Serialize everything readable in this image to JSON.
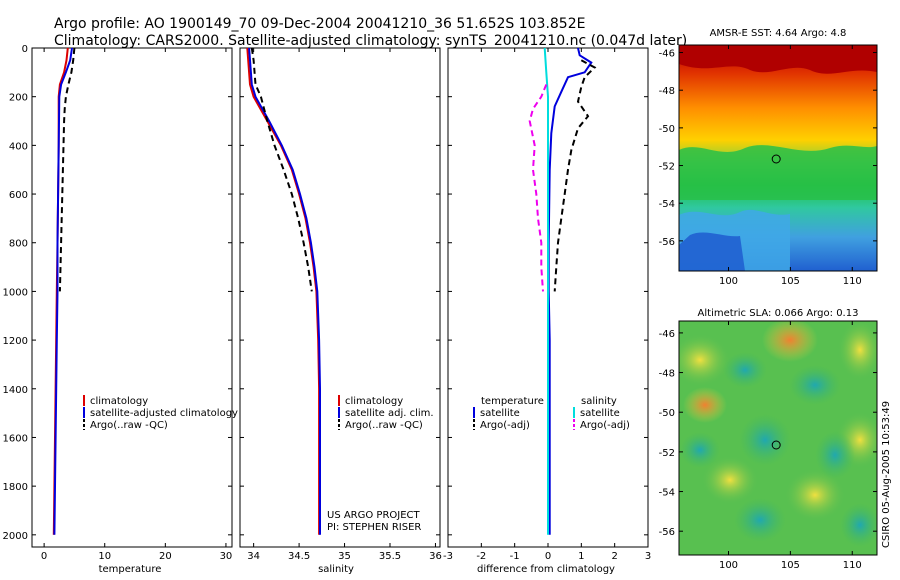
{
  "header": {
    "line1": "Argo profile: AO 1900149_70 09-Dec-2004 20041210_36 51.652S 103.852E",
    "line2": "Climatology: CARS2000. Satellite-adjusted climatology: synTS_20041210.nc (0.047d later)"
  },
  "side_stamp": "CSIRO 05-Aug-2005 10:53:49",
  "chart_data": [
    {
      "id": "temperature",
      "type": "line",
      "xlabel": "temperature",
      "ylabel": "",
      "xlim": [
        -2,
        31
      ],
      "ylim": [
        2050,
        0
      ],
      "xticks": [
        0,
        10,
        20,
        30
      ],
      "yticks": [
        0,
        200,
        400,
        600,
        800,
        1000,
        1200,
        1400,
        1600,
        1800,
        2000
      ],
      "legend": [
        "climatology",
        "satellite-adjusted climatology",
        "Argo(..raw -QC)"
      ],
      "series": [
        {
          "name": "climatology",
          "color": "#dd0000",
          "dash": "",
          "points": [
            [
              3.9,
              0
            ],
            [
              3.7,
              50
            ],
            [
              3.3,
              100
            ],
            [
              2.6,
              150
            ],
            [
              2.4,
              200
            ],
            [
              2.4,
              400
            ],
            [
              2.3,
              600
            ],
            [
              2.2,
              800
            ],
            [
              2.1,
              1000
            ],
            [
              2.0,
              1200
            ],
            [
              1.9,
              1400
            ],
            [
              1.8,
              1600
            ],
            [
              1.7,
              1800
            ],
            [
              1.6,
              2000
            ]
          ]
        },
        {
          "name": "satellite-adjusted climatology",
          "color": "#0000dd",
          "dash": "",
          "points": [
            [
              4.6,
              0
            ],
            [
              4.3,
              50
            ],
            [
              3.6,
              100
            ],
            [
              2.8,
              150
            ],
            [
              2.5,
              200
            ],
            [
              2.4,
              400
            ],
            [
              2.3,
              600
            ],
            [
              2.2,
              800
            ],
            [
              2.2,
              1000
            ],
            [
              2.1,
              1200
            ],
            [
              2.0,
              1400
            ],
            [
              1.9,
              1600
            ],
            [
              1.8,
              1800
            ],
            [
              1.7,
              2000
            ]
          ]
        },
        {
          "name": "Argo(..raw -QC)",
          "color": "#000000",
          "dash": "6,4",
          "points": [
            [
              5.0,
              0
            ],
            [
              4.8,
              50
            ],
            [
              4.5,
              100
            ],
            [
              4.0,
              150
            ],
            [
              3.6,
              200
            ],
            [
              3.4,
              250
            ],
            [
              3.3,
              300
            ],
            [
              3.2,
              400
            ],
            [
              3.1,
              500
            ],
            [
              3.0,
              600
            ],
            [
              2.9,
              700
            ],
            [
              2.8,
              800
            ],
            [
              2.7,
              900
            ],
            [
              2.6,
              1000
            ]
          ]
        }
      ]
    },
    {
      "id": "salinity",
      "type": "line",
      "xlabel": "salinity",
      "ylabel": "",
      "xlim": [
        33.85,
        36.05
      ],
      "ylim": [
        2050,
        0
      ],
      "xticks": [
        34,
        34.5,
        35,
        35.5,
        36
      ],
      "yticks": [
        0,
        200,
        400,
        600,
        800,
        1000,
        1200,
        1400,
        1600,
        1800,
        2000
      ],
      "legend": [
        "climatology",
        "satellite adj. clim.",
        "Argo(..raw -QC)"
      ],
      "annotation": [
        "US ARGO PROJECT",
        "PI: STEPHEN RISER"
      ],
      "series": [
        {
          "name": "climatology",
          "color": "#dd0000",
          "dash": "",
          "points": [
            [
              33.93,
              0
            ],
            [
              33.94,
              50
            ],
            [
              33.96,
              150
            ],
            [
              34.0,
              200
            ],
            [
              34.15,
              300
            ],
            [
              34.3,
              400
            ],
            [
              34.42,
              500
            ],
            [
              34.5,
              600
            ],
            [
              34.57,
              700
            ],
            [
              34.62,
              800
            ],
            [
              34.66,
              900
            ],
            [
              34.69,
              1000
            ],
            [
              34.71,
              1200
            ],
            [
              34.72,
              1400
            ],
            [
              34.72,
              1600
            ],
            [
              34.72,
              1800
            ],
            [
              34.72,
              2000
            ]
          ]
        },
        {
          "name": "satellite adj. clim.",
          "color": "#0000dd",
          "dash": "",
          "points": [
            [
              33.95,
              0
            ],
            [
              33.96,
              50
            ],
            [
              33.98,
              150
            ],
            [
              34.02,
              200
            ],
            [
              34.17,
              300
            ],
            [
              34.31,
              400
            ],
            [
              34.43,
              500
            ],
            [
              34.51,
              600
            ],
            [
              34.58,
              700
            ],
            [
              34.63,
              800
            ],
            [
              34.67,
              900
            ],
            [
              34.7,
              1000
            ],
            [
              34.72,
              1200
            ],
            [
              34.73,
              1400
            ],
            [
              34.73,
              1600
            ],
            [
              34.73,
              1800
            ],
            [
              34.73,
              2000
            ]
          ]
        },
        {
          "name": "Argo(..raw -QC)",
          "color": "#000000",
          "dash": "6,4",
          "points": [
            [
              33.98,
              0
            ],
            [
              34.0,
              50
            ],
            [
              34.02,
              150
            ],
            [
              34.08,
              200
            ],
            [
              34.15,
              300
            ],
            [
              34.23,
              400
            ],
            [
              34.33,
              500
            ],
            [
              34.42,
              600
            ],
            [
              34.49,
              700
            ],
            [
              34.55,
              800
            ],
            [
              34.6,
              900
            ],
            [
              34.64,
              1000
            ]
          ]
        }
      ]
    },
    {
      "id": "difference",
      "type": "line",
      "xlabel": "difference from climatology",
      "ylabel": "",
      "xlim": [
        -3,
        3
      ],
      "ylim": [
        2050,
        0
      ],
      "xticks": [
        -3,
        -2,
        -1,
        0,
        1,
        2,
        3
      ],
      "yticks": [
        0,
        200,
        400,
        600,
        800,
        1000,
        1200,
        1400,
        1600,
        1800,
        2000
      ],
      "legend_left_title": "temperature",
      "legend_left": [
        "satellite",
        "Argo(-adj)"
      ],
      "legend_right_title": "salinity",
      "legend_right": [
        "satellite",
        "Argo(-adj)"
      ],
      "series": [
        {
          "name": "temperature satellite",
          "color": "#0000dd",
          "dash": "",
          "points": [
            [
              0.9,
              0
            ],
            [
              0.95,
              30
            ],
            [
              1.3,
              60
            ],
            [
              1.1,
              100
            ],
            [
              0.6,
              120
            ],
            [
              0.4,
              180
            ],
            [
              0.2,
              240
            ],
            [
              0.1,
              350
            ],
            [
              0.05,
              500
            ],
            [
              0.02,
              800
            ],
            [
              0.02,
              1000
            ],
            [
              0.05,
              1200
            ],
            [
              0.05,
              1500
            ],
            [
              0.05,
              1800
            ],
            [
              0.05,
              2000
            ]
          ]
        },
        {
          "name": "temperature Argo(-adj)",
          "color": "#000000",
          "dash": "6,4",
          "points": [
            [
              1.0,
              50
            ],
            [
              1.4,
              80
            ],
            [
              1.1,
              120
            ],
            [
              1.0,
              160
            ],
            [
              0.9,
              220
            ],
            [
              1.2,
              280
            ],
            [
              0.9,
              330
            ],
            [
              0.7,
              420
            ],
            [
              0.6,
              500
            ],
            [
              0.5,
              600
            ],
            [
              0.4,
              700
            ],
            [
              0.3,
              800
            ],
            [
              0.25,
              900
            ],
            [
              0.2,
              1000
            ]
          ]
        },
        {
          "name": "salinity satellite",
          "color": "#00dddd",
          "dash": "",
          "points": [
            [
              -0.1,
              0
            ],
            [
              -0.05,
              100
            ],
            [
              0.0,
              200
            ],
            [
              0.0,
              500
            ],
            [
              0.0,
              1000
            ],
            [
              0.0,
              1500
            ],
            [
              0.0,
              2000
            ]
          ]
        },
        {
          "name": "salinity Argo(-adj)",
          "color": "#ee00ee",
          "dash": "6,4",
          "points": [
            [
              -0.05,
              150
            ],
            [
              -0.2,
              200
            ],
            [
              -0.45,
              250
            ],
            [
              -0.55,
              300
            ],
            [
              -0.4,
              400
            ],
            [
              -0.45,
              500
            ],
            [
              -0.35,
              600
            ],
            [
              -0.3,
              700
            ],
            [
              -0.2,
              800
            ],
            [
              -0.2,
              900
            ],
            [
              -0.15,
              1000
            ]
          ]
        }
      ]
    },
    {
      "id": "sst_map",
      "type": "heatmap",
      "title": "AMSR-E SST: 4.64 Argo: 4.8",
      "xlim": [
        96,
        112
      ],
      "ylim": [
        -57.6,
        -45.6
      ],
      "xticks": [
        100,
        105,
        110
      ],
      "yticks": [
        -46,
        -48,
        -50,
        -52,
        -54,
        -56
      ],
      "marker": [
        103.852,
        -51.652
      ]
    },
    {
      "id": "sla_map",
      "type": "heatmap",
      "title": "Altimetric SLA: 0.066 Argo: 0.13",
      "xlim": [
        96,
        112
      ],
      "ylim": [
        -57.2,
        -45.4
      ],
      "xticks": [
        100,
        105,
        110
      ],
      "yticks": [
        -46,
        -48,
        -50,
        -52,
        -54,
        -56
      ],
      "marker": [
        103.852,
        -51.652
      ]
    }
  ]
}
